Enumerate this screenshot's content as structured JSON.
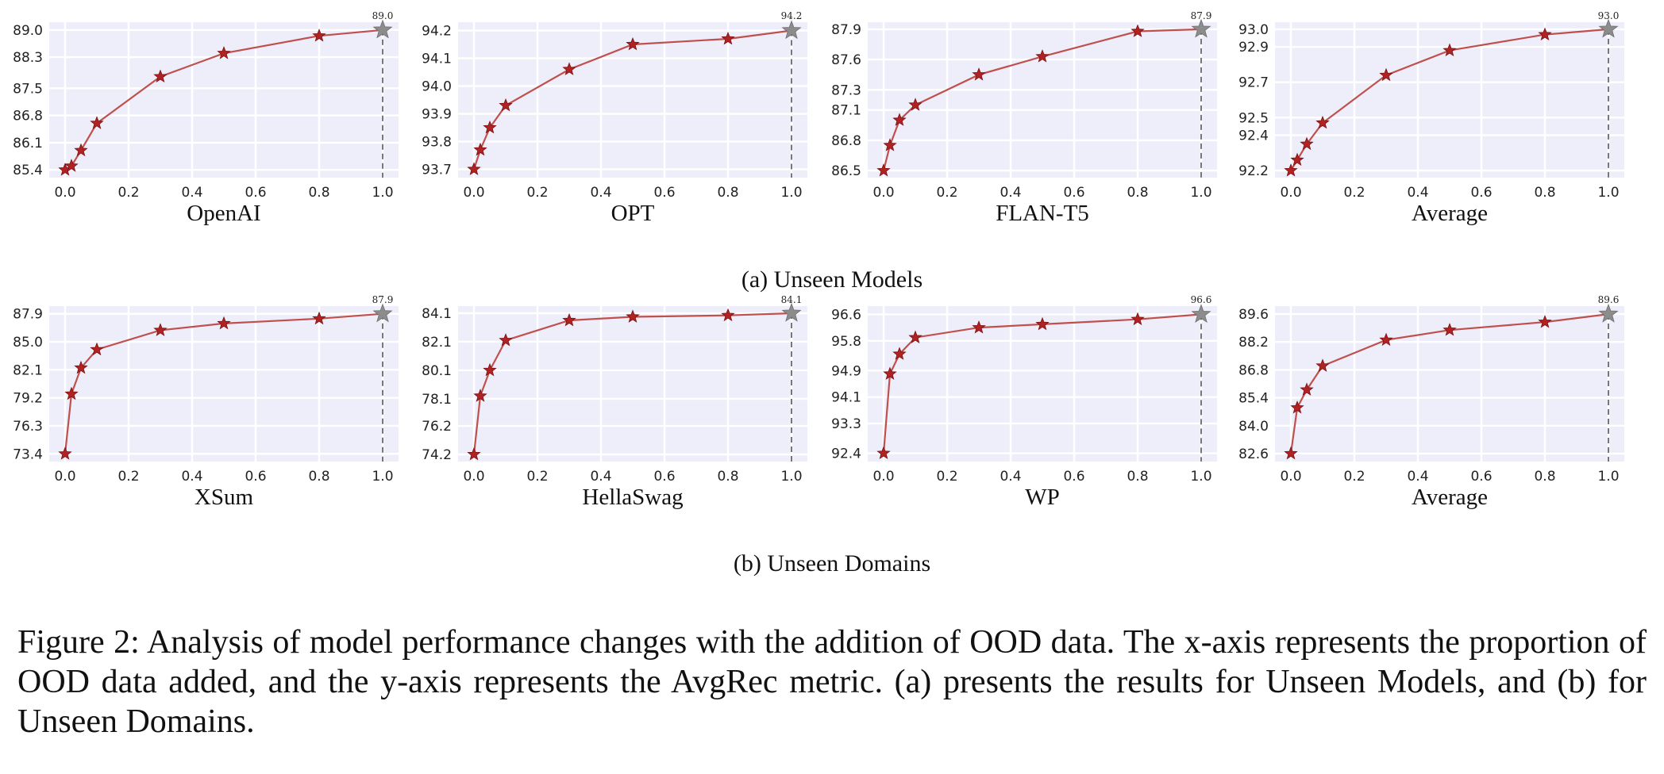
{
  "caption": {
    "text": "Figure 2: Analysis of model performance changes with the addition of OOD data. The x-axis represents the proportion of OOD data added, and the y-axis represents the AvgRec metric. (a) presents the results for Unseen Models, and (b) for Unseen Domains."
  },
  "groups": [
    {
      "label": "(a) Unseen Models"
    },
    {
      "label": "(b) Unseen Domains"
    }
  ],
  "colors": {
    "line": "#c0504d",
    "marker": "#b22222",
    "final_marker": "#8c8c8c",
    "plot_bg": "#eeeefb",
    "grid": "#ffffff",
    "dash": "#777777"
  },
  "chart_data": [
    {
      "type": "line",
      "group": 0,
      "title": "",
      "xlabel": "OpenAI",
      "ylabel": "",
      "x": [
        0.0,
        0.02,
        0.05,
        0.1,
        0.3,
        0.5,
        0.8,
        1.0
      ],
      "values": [
        85.4,
        85.5,
        85.9,
        86.6,
        87.8,
        88.4,
        88.85,
        89.0
      ],
      "yticks": [
        "85.4",
        "86.1",
        "86.8",
        "87.5",
        "88.3",
        "89.0"
      ],
      "xticks": [
        "0.0",
        "0.2",
        "0.4",
        "0.6",
        "0.8",
        "1.0"
      ],
      "ylim": [
        85.2,
        89.2
      ],
      "xlim": [
        -0.05,
        1.05
      ],
      "final_label": "89.0",
      "grid": true
    },
    {
      "type": "line",
      "group": 0,
      "title": "",
      "xlabel": "OPT",
      "ylabel": "",
      "x": [
        0.0,
        0.02,
        0.05,
        0.1,
        0.3,
        0.5,
        0.8,
        1.0
      ],
      "values": [
        93.7,
        93.77,
        93.85,
        93.93,
        94.06,
        94.15,
        94.17,
        94.2
      ],
      "yticks": [
        "93.7",
        "93.8",
        "93.9",
        "94.0",
        "94.1",
        "94.2"
      ],
      "xticks": [
        "0.0",
        "0.2",
        "0.4",
        "0.6",
        "0.8",
        "1.0"
      ],
      "ylim": [
        93.67,
        94.23
      ],
      "xlim": [
        -0.05,
        1.05
      ],
      "final_label": "94.2",
      "grid": true
    },
    {
      "type": "line",
      "group": 0,
      "title": "",
      "xlabel": "FLAN-T5",
      "ylabel": "",
      "x": [
        0.0,
        0.02,
        0.05,
        0.1,
        0.3,
        0.5,
        0.8,
        1.0
      ],
      "values": [
        86.5,
        86.75,
        87.0,
        87.15,
        87.45,
        87.63,
        87.88,
        87.9
      ],
      "yticks": [
        "86.5",
        "86.8",
        "87.1",
        "87.3",
        "87.6",
        "87.9"
      ],
      "xticks": [
        "0.0",
        "0.2",
        "0.4",
        "0.6",
        "0.8",
        "1.0"
      ],
      "ylim": [
        86.43,
        87.97
      ],
      "xlim": [
        -0.05,
        1.05
      ],
      "final_label": "87.9",
      "grid": true
    },
    {
      "type": "line",
      "group": 0,
      "title": "",
      "xlabel": "Average",
      "ylabel": "",
      "x": [
        0.0,
        0.02,
        0.05,
        0.1,
        0.3,
        0.5,
        0.8,
        1.0
      ],
      "values": [
        92.2,
        92.26,
        92.35,
        92.47,
        92.74,
        92.88,
        92.97,
        93.0
      ],
      "yticks": [
        "92.2",
        "92.4",
        "92.5",
        "92.7",
        "92.9",
        "93.0"
      ],
      "xticks": [
        "0.0",
        "0.2",
        "0.4",
        "0.6",
        "0.8",
        "1.0"
      ],
      "ylim": [
        92.16,
        93.04
      ],
      "xlim": [
        -0.05,
        1.05
      ],
      "final_label": "93.0",
      "grid": true
    },
    {
      "type": "line",
      "group": 1,
      "title": "",
      "xlabel": "XSum",
      "ylabel": "",
      "x": [
        0.0,
        0.02,
        0.05,
        0.1,
        0.3,
        0.5,
        0.8,
        1.0
      ],
      "values": [
        73.4,
        79.6,
        82.3,
        84.2,
        86.2,
        86.9,
        87.4,
        87.9
      ],
      "yticks": [
        "73.4",
        "76.3",
        "79.2",
        "82.1",
        "85.0",
        "87.9"
      ],
      "xticks": [
        "0.0",
        "0.2",
        "0.4",
        "0.6",
        "0.8",
        "1.0"
      ],
      "ylim": [
        72.6,
        88.7
      ],
      "xlim": [
        -0.05,
        1.05
      ],
      "final_label": "87.9",
      "grid": true
    },
    {
      "type": "line",
      "group": 1,
      "title": "",
      "xlabel": "HellaSwag",
      "ylabel": "",
      "x": [
        0.0,
        0.02,
        0.05,
        0.1,
        0.3,
        0.5,
        0.8,
        1.0
      ],
      "values": [
        74.2,
        78.3,
        80.1,
        82.2,
        83.6,
        83.85,
        83.95,
        84.1
      ],
      "yticks": [
        "74.2",
        "76.2",
        "78.1",
        "80.1",
        "82.1",
        "84.1"
      ],
      "xticks": [
        "0.0",
        "0.2",
        "0.4",
        "0.6",
        "0.8",
        "1.0"
      ],
      "ylim": [
        73.7,
        84.6
      ],
      "xlim": [
        -0.05,
        1.05
      ],
      "final_label": "84.1",
      "grid": true
    },
    {
      "type": "line",
      "group": 1,
      "title": "",
      "xlabel": "WP",
      "ylabel": "",
      "x": [
        0.0,
        0.02,
        0.05,
        0.1,
        0.3,
        0.5,
        0.8,
        1.0
      ],
      "values": [
        92.4,
        94.8,
        95.4,
        95.9,
        96.2,
        96.3,
        96.45,
        96.6
      ],
      "yticks": [
        "92.4",
        "93.3",
        "94.1",
        "94.9",
        "95.8",
        "96.6"
      ],
      "xticks": [
        "0.0",
        "0.2",
        "0.4",
        "0.6",
        "0.8",
        "1.0"
      ],
      "ylim": [
        92.15,
        96.85
      ],
      "xlim": [
        -0.05,
        1.05
      ],
      "final_label": "96.6",
      "grid": true
    },
    {
      "type": "line",
      "group": 1,
      "title": "",
      "xlabel": "Average",
      "ylabel": "",
      "x": [
        0.0,
        0.02,
        0.05,
        0.1,
        0.3,
        0.5,
        0.8,
        1.0
      ],
      "values": [
        82.6,
        84.9,
        85.8,
        87.0,
        88.3,
        88.8,
        89.2,
        89.6
      ],
      "yticks": [
        "82.6",
        "84.0",
        "85.4",
        "86.8",
        "88.2",
        "89.6"
      ],
      "xticks": [
        "0.0",
        "0.2",
        "0.4",
        "0.6",
        "0.8",
        "1.0"
      ],
      "ylim": [
        82.2,
        90.0
      ],
      "xlim": [
        -0.05,
        1.05
      ],
      "final_label": "89.6",
      "grid": true
    }
  ]
}
